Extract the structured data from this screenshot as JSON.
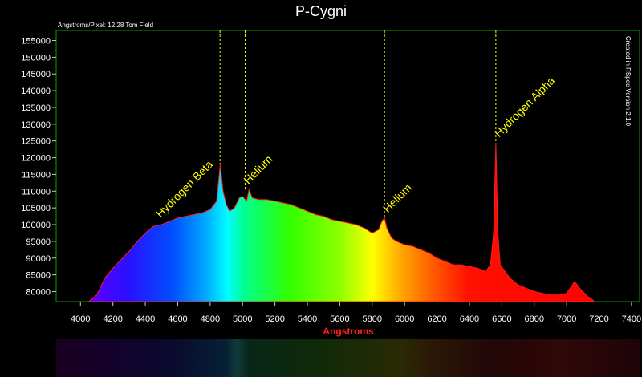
{
  "chart_data": {
    "type": "area",
    "title": "P-Cygni",
    "subtitle": "Angstroms/Pixel: 12.28 Tom Field",
    "side_note": "Created in RSpec Version 2.1.0",
    "xlabel": "Angstroms",
    "ylabel": "",
    "xlim": [
      3850,
      7450
    ],
    "ylim": [
      77000,
      158000
    ],
    "grid": false,
    "xticks": [
      4000,
      4200,
      4400,
      4600,
      4800,
      5000,
      5200,
      5400,
      5600,
      5800,
      6000,
      6200,
      6400,
      6600,
      6800,
      7000,
      7200,
      7400
    ],
    "yticks": [
      80000,
      85000,
      90000,
      95000,
      100000,
      105000,
      110000,
      115000,
      120000,
      125000,
      130000,
      135000,
      140000,
      145000,
      150000,
      155000
    ],
    "x": [
      4050,
      4100,
      4150,
      4200,
      4250,
      4300,
      4350,
      4400,
      4450,
      4500,
      4550,
      4600,
      4650,
      4700,
      4750,
      4800,
      4840,
      4862,
      4880,
      4900,
      4920,
      4950,
      4980,
      5000,
      5025,
      5040,
      5060,
      5100,
      5150,
      5200,
      5250,
      5300,
      5350,
      5400,
      5450,
      5500,
      5550,
      5600,
      5650,
      5700,
      5750,
      5800,
      5840,
      5860,
      5876,
      5890,
      5920,
      5950,
      6000,
      6050,
      6100,
      6150,
      6200,
      6250,
      6300,
      6350,
      6400,
      6450,
      6500,
      6530,
      6550,
      6563,
      6575,
      6590,
      6620,
      6650,
      6700,
      6750,
      6800,
      6850,
      6900,
      6950,
      7000,
      7050,
      7080,
      7100,
      7130,
      7150,
      7170
    ],
    "values": [
      77000,
      79000,
      84000,
      87000,
      89500,
      92000,
      95000,
      97500,
      99500,
      100000,
      101000,
      102000,
      102500,
      103000,
      103500,
      104500,
      107000,
      118000,
      110000,
      106000,
      104000,
      105000,
      108000,
      108500,
      107000,
      110500,
      108000,
      107500,
      107500,
      107000,
      106500,
      106000,
      105000,
      104000,
      103000,
      102500,
      101500,
      101000,
      100500,
      100000,
      99000,
      97500,
      98500,
      101000,
      102000,
      99000,
      96000,
      95000,
      94000,
      93500,
      92500,
      91500,
      90000,
      89000,
      88000,
      88000,
      87500,
      87000,
      86000,
      88000,
      98000,
      124500,
      98000,
      88000,
      86000,
      84000,
      82000,
      81000,
      80000,
      79500,
      79000,
      79000,
      79500,
      83000,
      81000,
      80000,
      78500,
      78000,
      77000
    ],
    "color": "#ff1a1a",
    "annotations": [
      {
        "text": "Hydrogen  Beta",
        "x": 4861,
        "color": "#ffff00"
      },
      {
        "text": "Helium",
        "x": 5016,
        "color": "#ffff00"
      },
      {
        "text": "Helium",
        "x": 5876,
        "color": "#ffff00"
      },
      {
        "text": "Hydrogen Alpha",
        "x": 6563,
        "color": "#ffff00"
      }
    ]
  }
}
